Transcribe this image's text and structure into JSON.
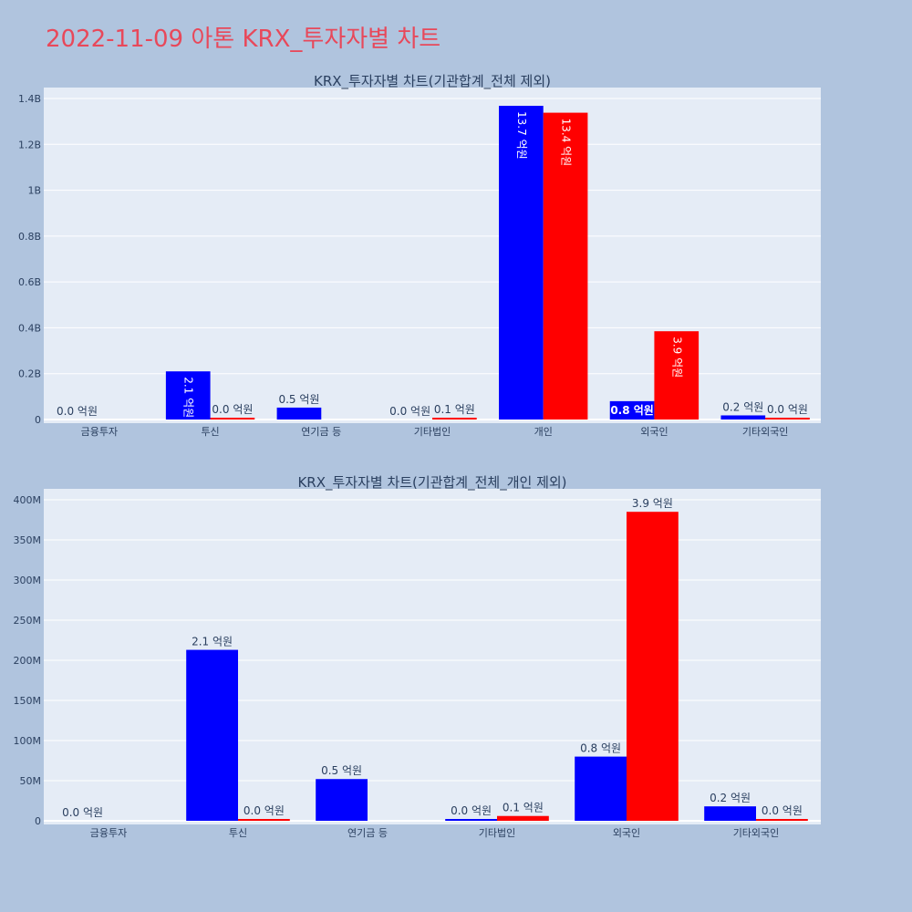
{
  "page_title": "2022-11-09 아톤 KRX_투자자별 차트",
  "colors": {
    "buy": "#0000ff",
    "sell": "#ff0000",
    "plot_bg": "#e5ecf6",
    "page_bg": "#b0c4de",
    "title": "#e8485a"
  },
  "chart_data": [
    {
      "type": "bar",
      "title": "KRX_투자자별 차트(기관합계_전체 제외)",
      "categories": [
        "금융투자",
        "투신",
        "연기금 등",
        "기타법인",
        "개인",
        "외국인",
        "기타외국인"
      ],
      "ylim": [
        0,
        1400000000
      ],
      "yticks": [
        0,
        200000000,
        400000000,
        600000000,
        800000000,
        1000000000,
        1200000000,
        1400000000
      ],
      "ytick_labels": [
        "0",
        "0.2B",
        "0.4B",
        "0.6B",
        "0.8B",
        "1B",
        "1.2B",
        "1.4B"
      ],
      "label_orientation": "vertical",
      "series": [
        {
          "color": "#0000ff",
          "values": [
            0,
            210000000,
            52000000,
            0,
            1368000000,
            80000000,
            18000000
          ],
          "labels": [
            "0.0 억원",
            "2.1 억원",
            "0.5 억원",
            "0.0 억원",
            "13.7 억원",
            "0.8 억원",
            "0.2 억원"
          ]
        },
        {
          "color": "#ff0000",
          "values": [
            null,
            2000000,
            null,
            6000000,
            1338000000,
            385000000,
            1000000
          ],
          "labels": [
            "",
            "0.0 억원",
            "",
            "0.1 억원",
            "13.4 억원",
            "3.9 억원",
            "0.0 억원"
          ]
        }
      ]
    },
    {
      "type": "bar",
      "title": "KRX_투자자별 차트(기관합계_전체_개인 제외)",
      "categories": [
        "금융투자",
        "투신",
        "연기금 등",
        "기타법인",
        "외국인",
        "기타외국인"
      ],
      "ylim": [
        0,
        400000000
      ],
      "yticks": [
        0,
        50000000,
        100000000,
        150000000,
        200000000,
        250000000,
        300000000,
        350000000,
        400000000
      ],
      "ytick_labels": [
        "0",
        "50M",
        "100M",
        "150M",
        "200M",
        "250M",
        "300M",
        "350M",
        "400M"
      ],
      "label_orientation": "horizontal",
      "series": [
        {
          "color": "#0000ff",
          "values": [
            0,
            213000000,
            52000000,
            2000000,
            80000000,
            18000000
          ],
          "labels": [
            "0.0 억원",
            "2.1 억원",
            "0.5 억원",
            "0.0 억원",
            "0.8 억원",
            "0.2 억원"
          ]
        },
        {
          "color": "#ff0000",
          "values": [
            null,
            2000000,
            null,
            6000000,
            385000000,
            1000000
          ],
          "labels": [
            "",
            "0.0 억원",
            "",
            "0.1 억원",
            "3.9 억원",
            "0.0 억원"
          ]
        }
      ]
    }
  ]
}
